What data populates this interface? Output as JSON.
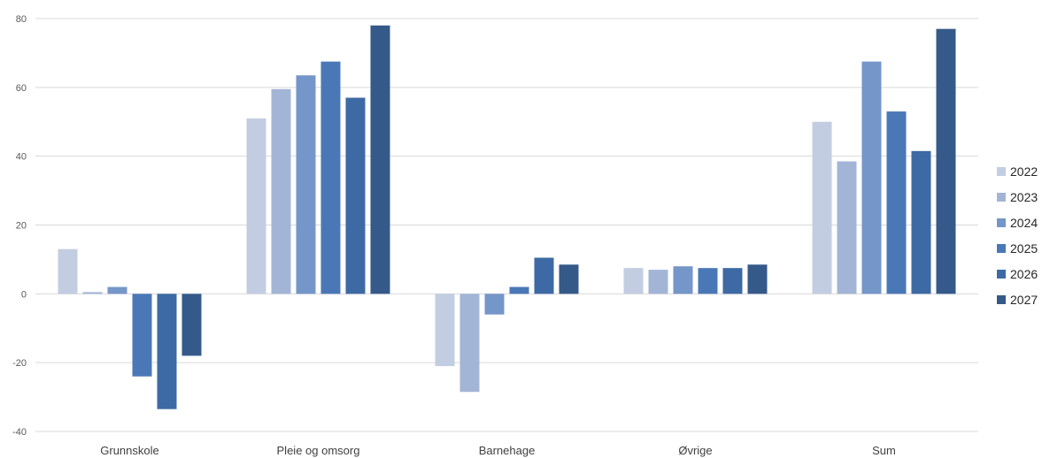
{
  "chart_data": {
    "type": "bar",
    "title": "",
    "xlabel": "",
    "ylabel": "",
    "categories": [
      "Grunnskole",
      "Pleie og omsorg",
      "Barnehage",
      "Øvrige",
      "Sum"
    ],
    "series": [
      {
        "name": "2022",
        "color": "#c3cde2",
        "values": [
          13,
          51,
          -21,
          7.5,
          50
        ]
      },
      {
        "name": "2023",
        "color": "#a3b5d6",
        "values": [
          0.5,
          59.5,
          -28.5,
          7,
          38.5
        ]
      },
      {
        "name": "2024",
        "color": "#7596c8",
        "values": [
          2,
          63.5,
          -6,
          8,
          67.5
        ]
      },
      {
        "name": "2025",
        "color": "#4a78b7",
        "values": [
          -24,
          67.5,
          2,
          7.5,
          53
        ]
      },
      {
        "name": "2026",
        "color": "#3d6aa4",
        "values": [
          -33.5,
          57,
          10.5,
          7.5,
          41.5
        ]
      },
      {
        "name": "2027",
        "color": "#355a8a",
        "values": [
          -18,
          78,
          8.5,
          8.5,
          77
        ]
      }
    ],
    "ylim": [
      -40,
      80
    ],
    "yticks": [
      -40,
      -20,
      0,
      20,
      40,
      60,
      80
    ],
    "grid": true,
    "legend": "right"
  }
}
